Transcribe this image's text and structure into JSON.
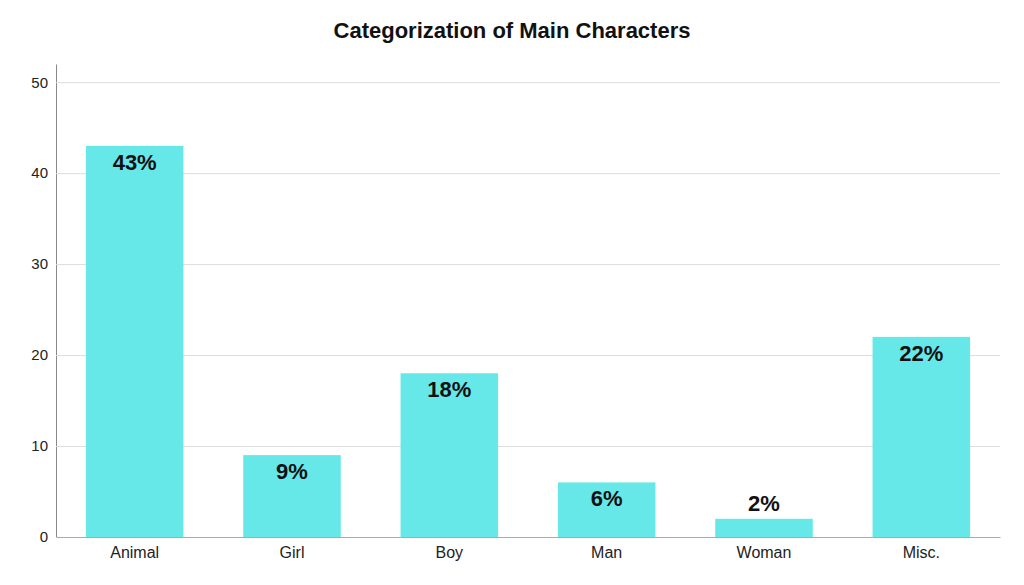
{
  "chart_data": {
    "type": "bar",
    "title": "Categorization of Main Characters",
    "categories": [
      "Animal",
      "Girl",
      "Boy",
      "Man",
      "Woman",
      "Misc."
    ],
    "values": [
      43,
      9,
      18,
      6,
      2,
      22
    ],
    "value_labels": [
      "43%",
      "9%",
      "18%",
      "6%",
      "2%",
      "22%"
    ],
    "data_labels": true,
    "color": "#67E8E8",
    "ylim": [
      0,
      52
    ],
    "yticks": [
      0,
      10,
      20,
      30,
      40,
      50
    ],
    "grid": true
  }
}
